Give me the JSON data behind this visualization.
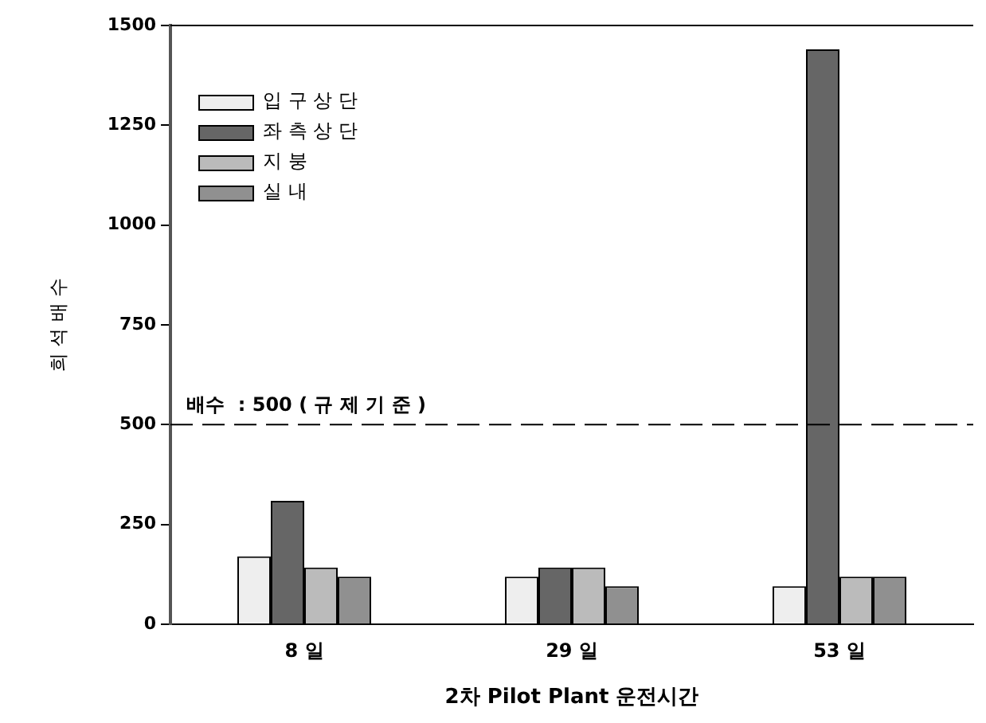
{
  "chart_data": {
    "type": "bar",
    "xlabel": "2차 Pilot Plant 운전시간",
    "ylabel": "희 석 배 수",
    "categories": [
      "8 일",
      "29 일",
      "53 일"
    ],
    "series": [
      {
        "name": "입 구 상 단",
        "color": "#eeeeee",
        "values": [
          170,
          119,
          95
        ]
      },
      {
        "name": "좌 측 상 단",
        "color": "#666666",
        "values": [
          309,
          142,
          1440
        ]
      },
      {
        "name": "지 붕",
        "color": "#bbbbbb",
        "values": [
          142,
          142,
          119
        ]
      },
      {
        "name": "실 내",
        "color": "#909090",
        "values": [
          119,
          95,
          119
        ]
      }
    ],
    "ylim": [
      0,
      1500
    ],
    "yticks": [
      0,
      250,
      500,
      750,
      1000,
      1250,
      1500
    ],
    "grid": false,
    "legend": "top left",
    "ref_lines": [
      {
        "axis": "y",
        "value": 500,
        "label": "배수  : 500 ( 규 제 기 준 )",
        "line_style": "dashed"
      }
    ]
  }
}
